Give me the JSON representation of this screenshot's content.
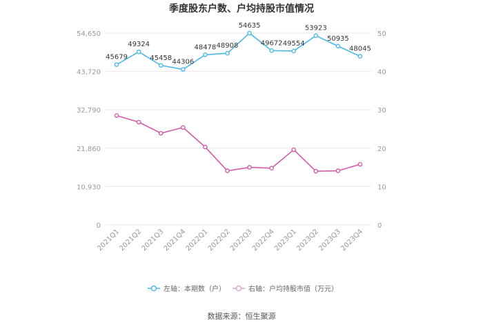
{
  "title": "季度股东户数、户均持股市值情况",
  "source": "数据来源：恒生聚源",
  "colors": {
    "left_series": "#4ab8e8",
    "right_series": "#d45aa8",
    "grid": "#e8e8e8",
    "axis_text": "#999999"
  },
  "legend": [
    {
      "label": "左轴：本期数（户）",
      "color": "#4ab8e8"
    },
    {
      "label": "右轴：户均持股市值（万元）",
      "color": "#e29fd0"
    }
  ],
  "chart_data": {
    "type": "line",
    "title": "季度股东户数、户均持股市值情况",
    "categories": [
      "2021Q1",
      "2021Q2",
      "2021Q3",
      "2021Q4",
      "2022Q1",
      "2022Q2",
      "2022Q3",
      "2022Q4",
      "2023Q1",
      "2023Q2",
      "2023Q3",
      "2023Q4"
    ],
    "left_axis": {
      "ticks": [
        "0",
        "10,930",
        "21,860",
        "32,790",
        "43,720",
        "54,650"
      ],
      "ylim": [
        0,
        54650
      ]
    },
    "right_axis": {
      "ticks": [
        "0",
        "10",
        "20",
        "30",
        "40",
        "50"
      ],
      "ylim": [
        0,
        50
      ]
    },
    "series": [
      {
        "name": "左轴：本期数（户）",
        "axis": "left",
        "values": [
          45679,
          49324,
          45458,
          44306,
          48478,
          48908,
          54635,
          49672,
          49554,
          53923,
          50935,
          48045
        ],
        "labels": [
          "45679",
          "49324",
          "45458",
          "44306",
          "48478",
          "48908",
          "54635",
          "49672",
          "49554",
          "53923",
          "50935",
          "48045"
        ]
      },
      {
        "name": "右轴：户均持股市值（万元）",
        "axis": "right",
        "values": [
          28.5,
          26.8,
          23.9,
          25.4,
          20.3,
          14.1,
          15.0,
          14.8,
          19.6,
          14.0,
          14.1,
          15.8
        ]
      }
    ],
    "grid": true,
    "legend_position": "bottom"
  }
}
